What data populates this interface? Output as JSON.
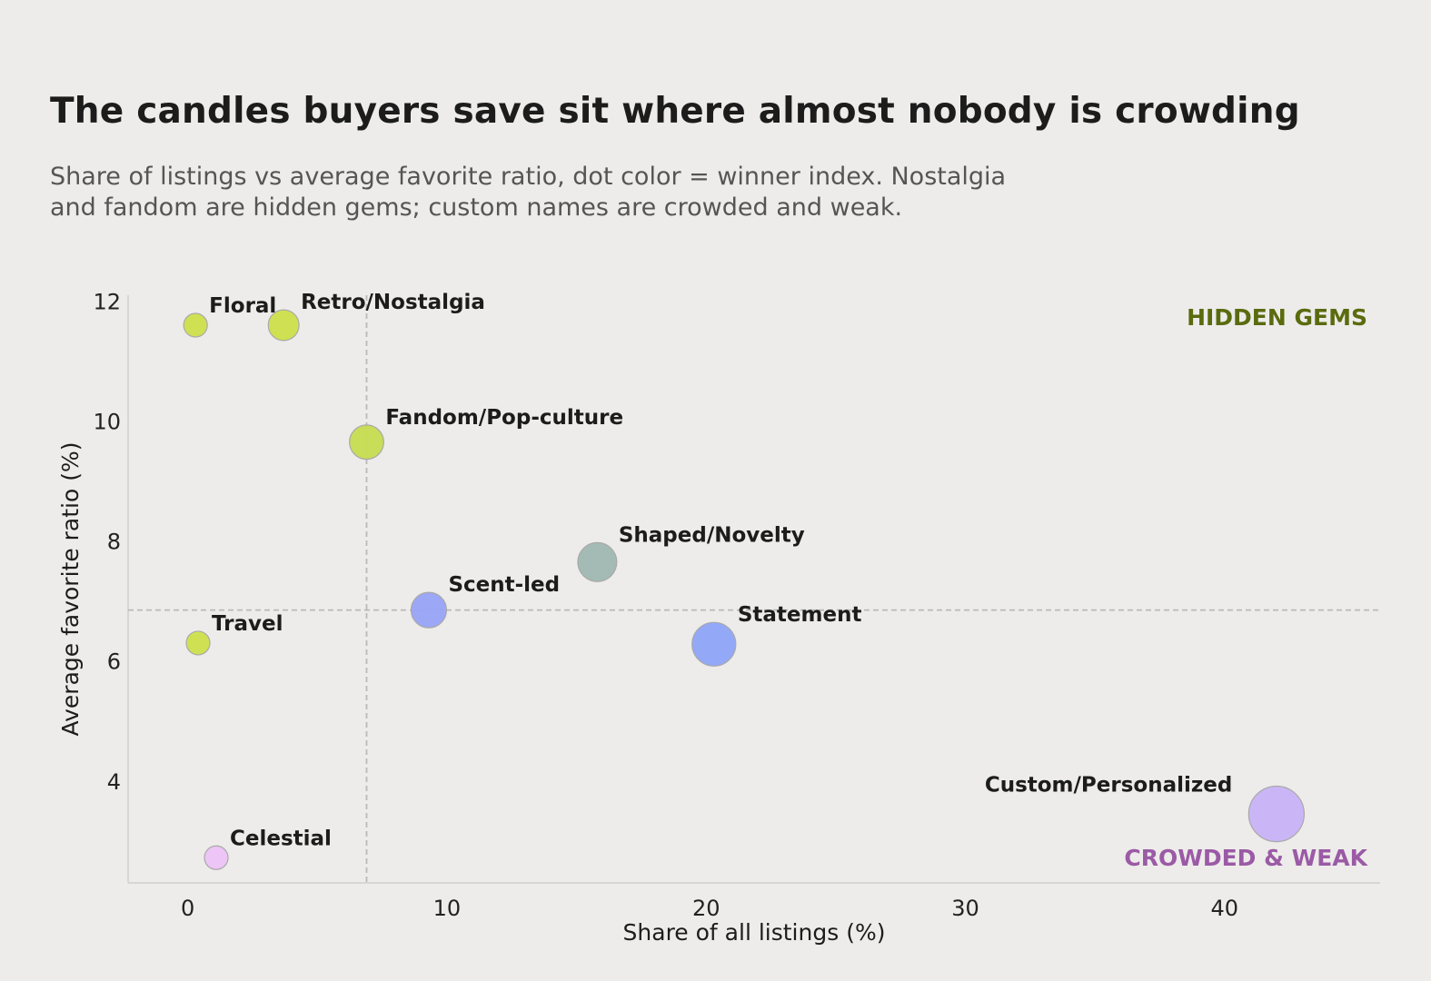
{
  "title": "The candles buyers save sit where almost nobody is crowding",
  "subtitle_lines": [
    "Share of listings vs average favorite ratio, dot color = winner index. Nostalgia",
    "and fandom are hidden gems; custom names are crowded and weak."
  ],
  "chart_data": {
    "type": "scatter",
    "xlabel": "Share of all listings (%)",
    "ylabel": "Average favorite ratio (%)",
    "xlim": [
      -2.3,
      46
    ],
    "ylim": [
      2.3,
      12.1
    ],
    "xticks": [
      0,
      10,
      20,
      30,
      40
    ],
    "yticks": [
      4,
      6,
      8,
      10,
      12
    ],
    "reference_lines": {
      "x": 6.9,
      "y": 6.85
    },
    "quadrant_labels": [
      {
        "text": "HIDDEN GEMS",
        "position": "top-right",
        "color": "#5a6b0f"
      },
      {
        "text": "CROWDED & WEAK",
        "position": "bottom-right",
        "color": "#9b5aa6"
      }
    ],
    "points": [
      {
        "label": "Floral",
        "x": 0.3,
        "y": 11.6,
        "size": 1.0,
        "color": "#cde04a",
        "label_side": "right"
      },
      {
        "label": "Retro/Nostalgia",
        "x": 3.7,
        "y": 11.6,
        "size": 1.3,
        "color": "#cde04a",
        "label_side": "right"
      },
      {
        "label": "Fandom/Pop-culture",
        "x": 6.9,
        "y": 9.65,
        "size": 1.45,
        "color": "#c6dc50",
        "label_side": "right"
      },
      {
        "label": "Shaped/Novelty",
        "x": 15.8,
        "y": 7.65,
        "size": 1.65,
        "color": "#9fb8b1",
        "label_side": "right"
      },
      {
        "label": "Scent-led",
        "x": 9.3,
        "y": 6.85,
        "size": 1.5,
        "color": "#98a3f7",
        "label_side": "right"
      },
      {
        "label": "Travel",
        "x": 0.4,
        "y": 6.3,
        "size": 1.0,
        "color": "#cde04a",
        "label_side": "right"
      },
      {
        "label": "Statement",
        "x": 20.3,
        "y": 6.28,
        "size": 1.85,
        "color": "#8ea4f8",
        "label_side": "right"
      },
      {
        "label": "Custom/Personalized",
        "x": 42.0,
        "y": 3.45,
        "size": 2.35,
        "color": "#c8b3f7",
        "label_side": "left"
      },
      {
        "label": "Celestial",
        "x": 1.1,
        "y": 2.72,
        "size": 1.0,
        "color": "#edc3f7",
        "label_side": "right"
      }
    ]
  }
}
